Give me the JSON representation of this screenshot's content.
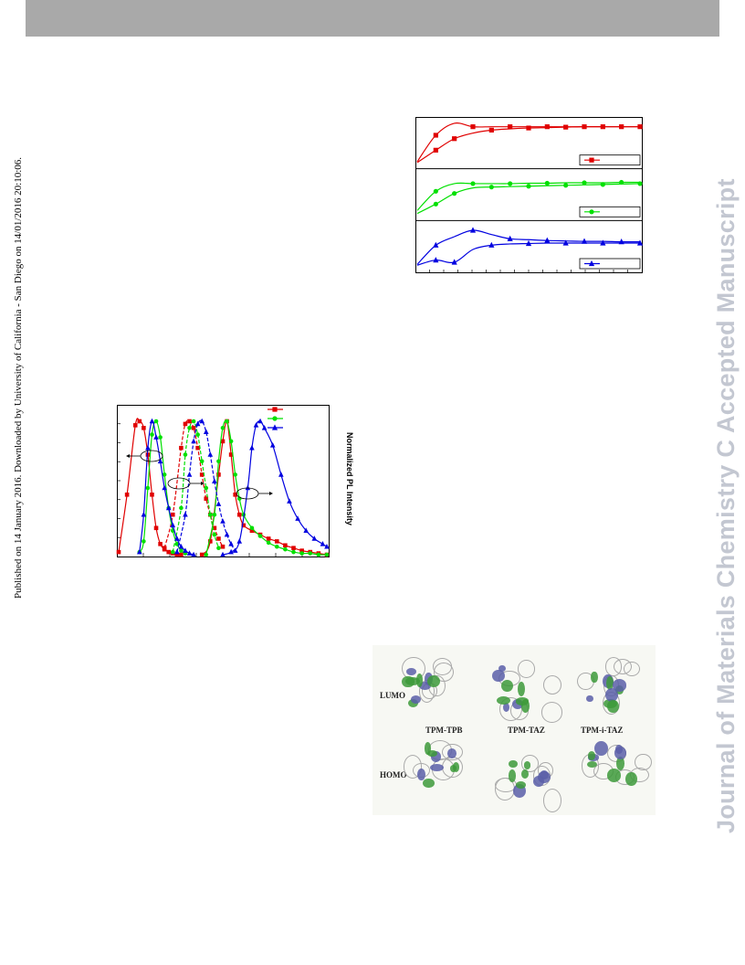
{
  "header": {},
  "side_note": "Published on 14 January 2016. Downloaded by University of California - San Diego on 14/01/2016 20:10:06.",
  "watermark": "Journal of Materials Chemistry C Accepted Manuscript",
  "figure_pl": {
    "ylabel": "Normalized PL Intensity"
  },
  "figure_mo": {
    "lumo_label": "LUMO",
    "homo_label": "HOMO",
    "molecules": [
      "TPM-TPB",
      "TPM-TAZ",
      "TPM-i-TAZ"
    ]
  },
  "colors": {
    "red": "#e00000",
    "green": "#00e000",
    "blue": "#0000e0",
    "header": "#a9a9a9",
    "watermark": "#c3c7d1"
  },
  "chart_data": [
    {
      "type": "line",
      "xlabel": "",
      "ylabel": "",
      "panels": [
        {
          "color": "#e00000",
          "marker": "square",
          "series": [
            {
              "x": [
                0,
                1,
                2,
                3,
                4,
                5,
                6,
                7,
                8,
                9,
                10,
                11,
                12
              ],
              "values": [
                0.08,
                0.7,
                0.98,
                0.9,
                0.9,
                0.9,
                0.9,
                0.9,
                0.9,
                0.9,
                0.9,
                0.9,
                0.9
              ]
            },
            {
              "x": [
                0,
                1,
                2,
                3,
                4,
                5,
                6,
                7,
                8,
                9,
                10,
                11,
                12
              ],
              "values": [
                0.06,
                0.35,
                0.62,
                0.75,
                0.82,
                0.85,
                0.87,
                0.88,
                0.89,
                0.9,
                0.9,
                0.9,
                0.9
              ]
            }
          ]
        },
        {
          "color": "#00e000",
          "marker": "circle",
          "series": [
            {
              "x": [
                0,
                1,
                2,
                3,
                4,
                5,
                6,
                7,
                8,
                9,
                10,
                11,
                12
              ],
              "values": [
                0.15,
                0.6,
                0.78,
                0.78,
                0.78,
                0.78,
                0.79,
                0.79,
                0.8,
                0.8,
                0.8,
                0.81,
                0.81
              ]
            },
            {
              "x": [
                0,
                1,
                2,
                3,
                4,
                5,
                6,
                7,
                8,
                9,
                10,
                11,
                12
              ],
              "values": [
                0.08,
                0.3,
                0.55,
                0.68,
                0.7,
                0.71,
                0.72,
                0.73,
                0.74,
                0.75,
                0.76,
                0.77,
                0.78
              ]
            }
          ]
        },
        {
          "color": "#0000e0",
          "marker": "triangle",
          "series": [
            {
              "x": [
                0,
                1,
                2,
                3,
                4,
                5,
                6,
                7,
                8,
                9,
                10,
                11,
                12
              ],
              "values": [
                0.1,
                0.55,
                0.75,
                0.9,
                0.8,
                0.7,
                0.68,
                0.66,
                0.65,
                0.64,
                0.64,
                0.63,
                0.63
              ]
            },
            {
              "x": [
                0,
                1,
                2,
                3,
                4,
                5,
                6,
                7,
                8,
                9,
                10,
                11,
                12
              ],
              "values": [
                0.08,
                0.2,
                0.15,
                0.45,
                0.55,
                0.58,
                0.59,
                0.6,
                0.6,
                0.6,
                0.6,
                0.6,
                0.6
              ]
            }
          ]
        }
      ]
    },
    {
      "type": "line",
      "ylabel": "Normalized PL Intensity",
      "xlim": [
        0,
        100
      ],
      "ylim": [
        0,
        1
      ],
      "series": [
        {
          "color": "#e00000",
          "marker": "square",
          "x": [
            0,
            4,
            8,
            10,
            12,
            14,
            16,
            18,
            20,
            22,
            24,
            26,
            28,
            30
          ],
          "values": [
            0.02,
            0.45,
            0.97,
            1.0,
            0.95,
            0.75,
            0.45,
            0.2,
            0.08,
            0.04,
            0.02,
            0.01,
            0.0,
            0.0
          ]
        },
        {
          "color": "#e00000",
          "marker": "square",
          "x": [
            22,
            26,
            30,
            32,
            34,
            36,
            38,
            40,
            42,
            44,
            46,
            48,
            50
          ],
          "values": [
            0.05,
            0.3,
            0.8,
            0.98,
            1.0,
            0.95,
            0.8,
            0.6,
            0.42,
            0.3,
            0.2,
            0.12,
            0.06
          ]
        },
        {
          "color": "#e00000",
          "marker": "square",
          "x": [
            40,
            44,
            48,
            50,
            52,
            54,
            56,
            58,
            60,
            64,
            68,
            72,
            76,
            80,
            84,
            88,
            92,
            96,
            100
          ],
          "values": [
            0.0,
            0.1,
            0.6,
            0.85,
            1.0,
            0.75,
            0.45,
            0.3,
            0.22,
            0.18,
            0.15,
            0.12,
            0.1,
            0.07,
            0.05,
            0.03,
            0.02,
            0.01,
            0.0
          ]
        },
        {
          "color": "#00e000",
          "marker": "circle",
          "x": [
            10,
            12,
            14,
            16,
            18,
            20,
            22,
            24,
            26,
            28,
            30,
            32
          ],
          "values": [
            0.02,
            0.1,
            0.5,
            0.9,
            1.0,
            0.88,
            0.6,
            0.35,
            0.18,
            0.08,
            0.03,
            0.01
          ]
        },
        {
          "color": "#00e000",
          "marker": "circle",
          "x": [
            26,
            30,
            32,
            34,
            36,
            38,
            40,
            42,
            44,
            46,
            48
          ],
          "values": [
            0.02,
            0.35,
            0.75,
            0.95,
            1.0,
            0.9,
            0.7,
            0.5,
            0.3,
            0.15,
            0.05
          ]
        },
        {
          "color": "#00e000",
          "marker": "circle",
          "x": [
            42,
            46,
            48,
            50,
            52,
            54,
            56,
            58,
            60,
            64,
            68,
            72,
            76,
            80,
            84,
            88,
            92,
            96,
            100
          ],
          "values": [
            0.0,
            0.3,
            0.7,
            0.95,
            1.0,
            0.85,
            0.6,
            0.42,
            0.3,
            0.2,
            0.14,
            0.09,
            0.06,
            0.04,
            0.02,
            0.01,
            0.01,
            0.0,
            0.0
          ]
        },
        {
          "color": "#0000e0",
          "marker": "triangle",
          "x": [
            10,
            12,
            14,
            16,
            18,
            20,
            22,
            24,
            26,
            28,
            30,
            32,
            34,
            36
          ],
          "values": [
            0.02,
            0.3,
            0.8,
            1.0,
            0.88,
            0.7,
            0.5,
            0.35,
            0.22,
            0.12,
            0.06,
            0.03,
            0.01,
            0.0
          ]
        },
        {
          "color": "#0000e0",
          "marker": "triangle",
          "x": [
            28,
            32,
            34,
            36,
            38,
            40,
            42,
            44,
            46,
            48,
            50,
            52,
            54,
            56
          ],
          "values": [
            0.02,
            0.3,
            0.6,
            0.85,
            0.98,
            1.0,
            0.92,
            0.75,
            0.55,
            0.38,
            0.25,
            0.15,
            0.08,
            0.03
          ]
        },
        {
          "color": "#0000e0",
          "marker": "triangle",
          "x": [
            50,
            54,
            58,
            62,
            64,
            66,
            68,
            70,
            74,
            78,
            82,
            86,
            90,
            94,
            98,
            100
          ],
          "values": [
            0.0,
            0.02,
            0.1,
            0.5,
            0.8,
            0.97,
            1.0,
            0.95,
            0.82,
            0.6,
            0.4,
            0.27,
            0.18,
            0.12,
            0.08,
            0.06
          ]
        }
      ]
    }
  ]
}
